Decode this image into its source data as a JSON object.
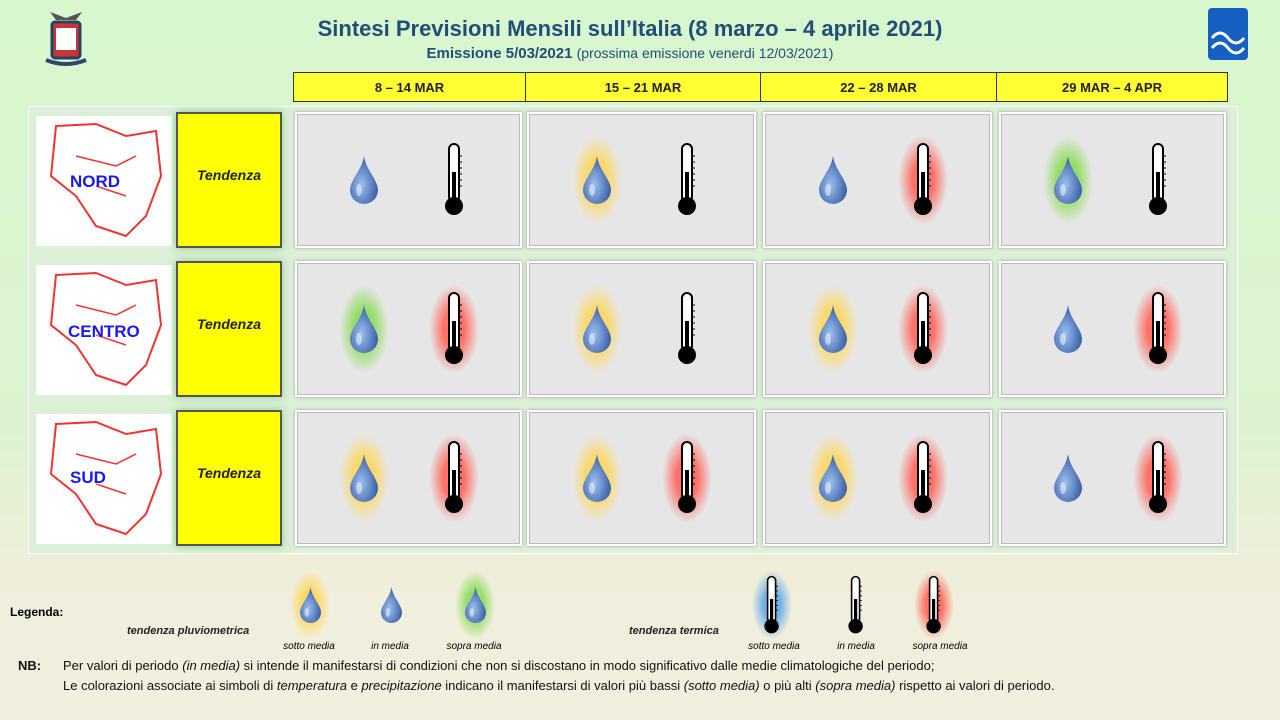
{
  "header": {
    "title": "Sintesi  Previsioni Mensili sull’Italia (8 marzo – 4 aprile 2021)",
    "emission": "Emissione 5/03/2021",
    "next_emission": "(prossima emissione venerdi 12/03/2021)"
  },
  "weeks": [
    "8 – 14 MAR",
    "15 – 21 MAR",
    "22 – 28 MAR",
    "29 MAR – 4 APR"
  ],
  "tendency_label": "Tendenza",
  "rows": [
    {
      "region": "NORD",
      "cells": [
        {
          "rain": "in media",
          "temp": "in media"
        },
        {
          "rain": "sotto media",
          "temp": "in media"
        },
        {
          "rain": "in media",
          "temp": "sopra media"
        },
        {
          "rain": "sopra media",
          "temp": "in media"
        }
      ]
    },
    {
      "region": "CENTRO",
      "cells": [
        {
          "rain": "sopra media",
          "temp": "sopra media"
        },
        {
          "rain": "sotto media",
          "temp": "in media"
        },
        {
          "rain": "sotto media",
          "temp": "sopra media"
        },
        {
          "rain": "in media",
          "temp": "sopra media"
        }
      ]
    },
    {
      "region": "SUD",
      "cells": [
        {
          "rain": "sotto media",
          "temp": "sopra media"
        },
        {
          "rain": "sotto media",
          "temp": "sopra media"
        },
        {
          "rain": "sotto media",
          "temp": "sopra media"
        },
        {
          "rain": "in media",
          "temp": "sopra media"
        }
      ]
    }
  ],
  "colors": {
    "rain": {
      "sotto media": "#ffd75a",
      "in media": "none",
      "sopra media": "#8cdc5a"
    },
    "temp": {
      "sotto media": "#64aae6",
      "in media": "none",
      "sopra media": "#ff645a"
    }
  },
  "legend": {
    "title": "Legenda",
    "rain_label": "tendenza pluviometrica",
    "temp_label": "tendenza termica",
    "sotto": "sotto media",
    "in": "in media",
    "sopra": "sopra media"
  },
  "nb": {
    "label": "NB:",
    "line1_a": "Per valori di periodo ",
    "line1_em": "(in media)",
    "line1_b": " si intende il manifestarsi di condizioni che non si discostano in modo significativo dalle medie climatologiche del periodo;",
    "line2_a": "Le colorazioni associate ai simboli di ",
    "line2_em1": "temperatura",
    "line2_b": " e ",
    "line2_em2": "precipitazione",
    "line2_c": " indicano il manifestarsi di valori più bassi ",
    "line2_em3": "(sotto media)",
    "line2_d": " o più alti ",
    "line2_em4": "(sopra media)",
    "line2_e": " rispetto ai valori di periodo."
  }
}
